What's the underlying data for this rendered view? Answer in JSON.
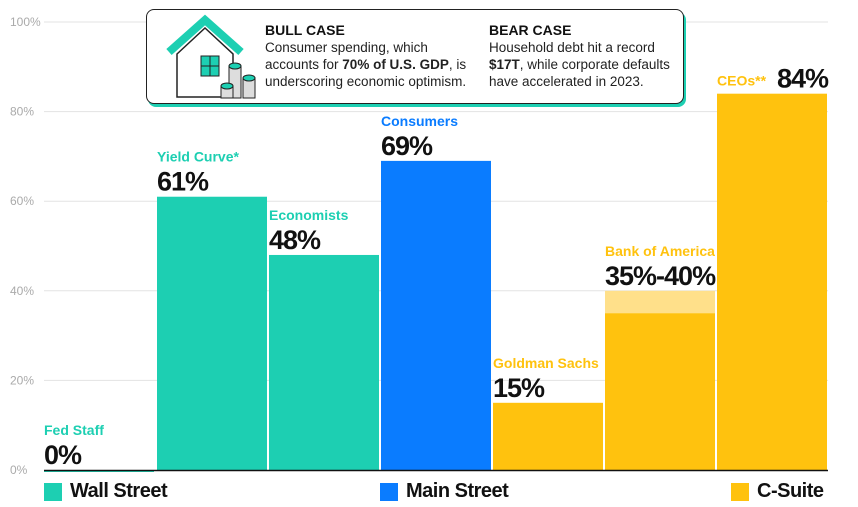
{
  "chart_data": {
    "type": "bar",
    "ylim": [
      0,
      100
    ],
    "yticks": [
      0,
      20,
      40,
      60,
      80,
      100
    ],
    "ytick_labels": [
      "0%",
      "20%",
      "40%",
      "60%",
      "80%",
      "100%"
    ],
    "grid": true,
    "bars": [
      {
        "category": "Fed Staff",
        "value": 0,
        "label": "0%",
        "group": "Wall Street"
      },
      {
        "category": "Yield Curve*",
        "value": 61,
        "label": "61%",
        "group": "Wall Street"
      },
      {
        "category": "Economists",
        "value": 48,
        "label": "48%",
        "group": "Wall Street"
      },
      {
        "category": "Consumers",
        "value": 69,
        "label": "69%",
        "group": "Main Street"
      },
      {
        "category": "Goldman Sachs",
        "value": 15,
        "label": "15%",
        "group": "C-Suite"
      },
      {
        "category": "Bank of America",
        "value": 35,
        "value_high": 40,
        "label": "35%-40%",
        "group": "C-Suite"
      },
      {
        "category": "CEOs**",
        "value": 84,
        "label": "84%",
        "group": "C-Suite"
      }
    ],
    "legend": [
      {
        "name": "Wall Street",
        "color": "#1dcfb2"
      },
      {
        "name": "Main Street",
        "color": "#0a7cff"
      },
      {
        "name": "C-Suite",
        "color": "#ffc20e"
      }
    ],
    "legend_placement": "bottom"
  },
  "callout": {
    "bull": {
      "title": "BULL CASE",
      "line1": "Consumer spending, which",
      "pre": "accounts for ",
      "bold": "70% of U.S. GDP",
      "post": ", is",
      "line3": "underscoring economic optimism."
    },
    "bear": {
      "title": "BEAR CASE",
      "line1": "Household debt hit a record",
      "bold": "$17T",
      "post": ", while corporate defaults",
      "line3": "have accelerated in 2023."
    }
  },
  "colors": {
    "range_light": "#ffe08a"
  }
}
